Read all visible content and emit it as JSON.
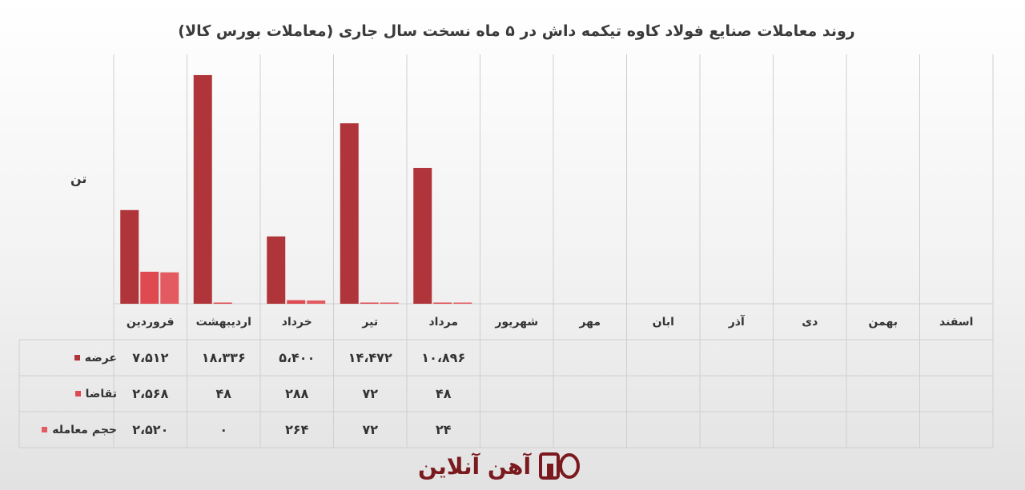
{
  "title": "روند معاملات صنایع فولاد کاوه تیکمه داش در ۵ ماه نسخت سال جاری (معاملات بورس کالا)",
  "unit_label": "تن",
  "logo": {
    "text": "آهن آنلاین",
    "mark": "AO"
  },
  "colors": {
    "supply": "#b0353a",
    "demand": "#de4a50",
    "volume": "#e35a60",
    "grid": "#cfcfcf"
  },
  "chart_data": {
    "type": "bar",
    "title": "روند معاملات صنایع فولاد کاوه تیکمه داش در ۵ ماه نسخت سال جاری (معاملات بورس کالا)",
    "ylabel": "تن",
    "ylim": [
      0,
      20000
    ],
    "categories": [
      "فروردین",
      "اردیبهشت",
      "خرداد",
      "تیر",
      "مرداد",
      "شهریور",
      "مهر",
      "ابان",
      "آذر",
      "دی",
      "بهمن",
      "اسفند"
    ],
    "series": [
      {
        "name": "عرضه",
        "values": [
          7512,
          18336,
          5400,
          14472,
          10896,
          null,
          null,
          null,
          null,
          null,
          null,
          null
        ],
        "labels": [
          "۷،۵۱۲",
          "۱۸،۳۳۶",
          "۵،۴۰۰",
          "۱۴،۴۷۲",
          "۱۰،۸۹۶",
          "",
          "",
          "",
          "",
          "",
          "",
          ""
        ]
      },
      {
        "name": "تقاضا",
        "values": [
          2568,
          48,
          288,
          72,
          48,
          null,
          null,
          null,
          null,
          null,
          null,
          null
        ],
        "labels": [
          "۲،۵۶۸",
          "۴۸",
          "۲۸۸",
          "۷۲",
          "۴۸",
          "",
          "",
          "",
          "",
          "",
          "",
          ""
        ]
      },
      {
        "name": "حجم معامله",
        "values": [
          2520,
          0,
          264,
          72,
          24,
          null,
          null,
          null,
          null,
          null,
          null,
          null
        ],
        "labels": [
          "۲،۵۲۰",
          "۰",
          "۲۶۴",
          "۷۲",
          "۲۴",
          "",
          "",
          "",
          "",
          "",
          "",
          ""
        ]
      }
    ],
    "legend": "table"
  }
}
